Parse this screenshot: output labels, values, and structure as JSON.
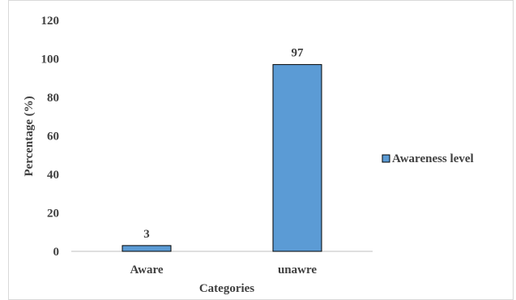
{
  "chart_data": {
    "type": "bar",
    "categories": [
      "Aware",
      "unawre"
    ],
    "series": [
      {
        "name": "Awareness level",
        "values": [
          3,
          97
        ],
        "color": "#5b9bd5"
      }
    ],
    "title": "",
    "xlabel": "Categories",
    "ylabel": "Percentage (%)",
    "ylim": [
      0,
      120
    ],
    "yticks": [
      0,
      20,
      40,
      60,
      80,
      100,
      120
    ],
    "grid": false,
    "legend": "right",
    "data_labels": [
      "3",
      "97"
    ]
  }
}
